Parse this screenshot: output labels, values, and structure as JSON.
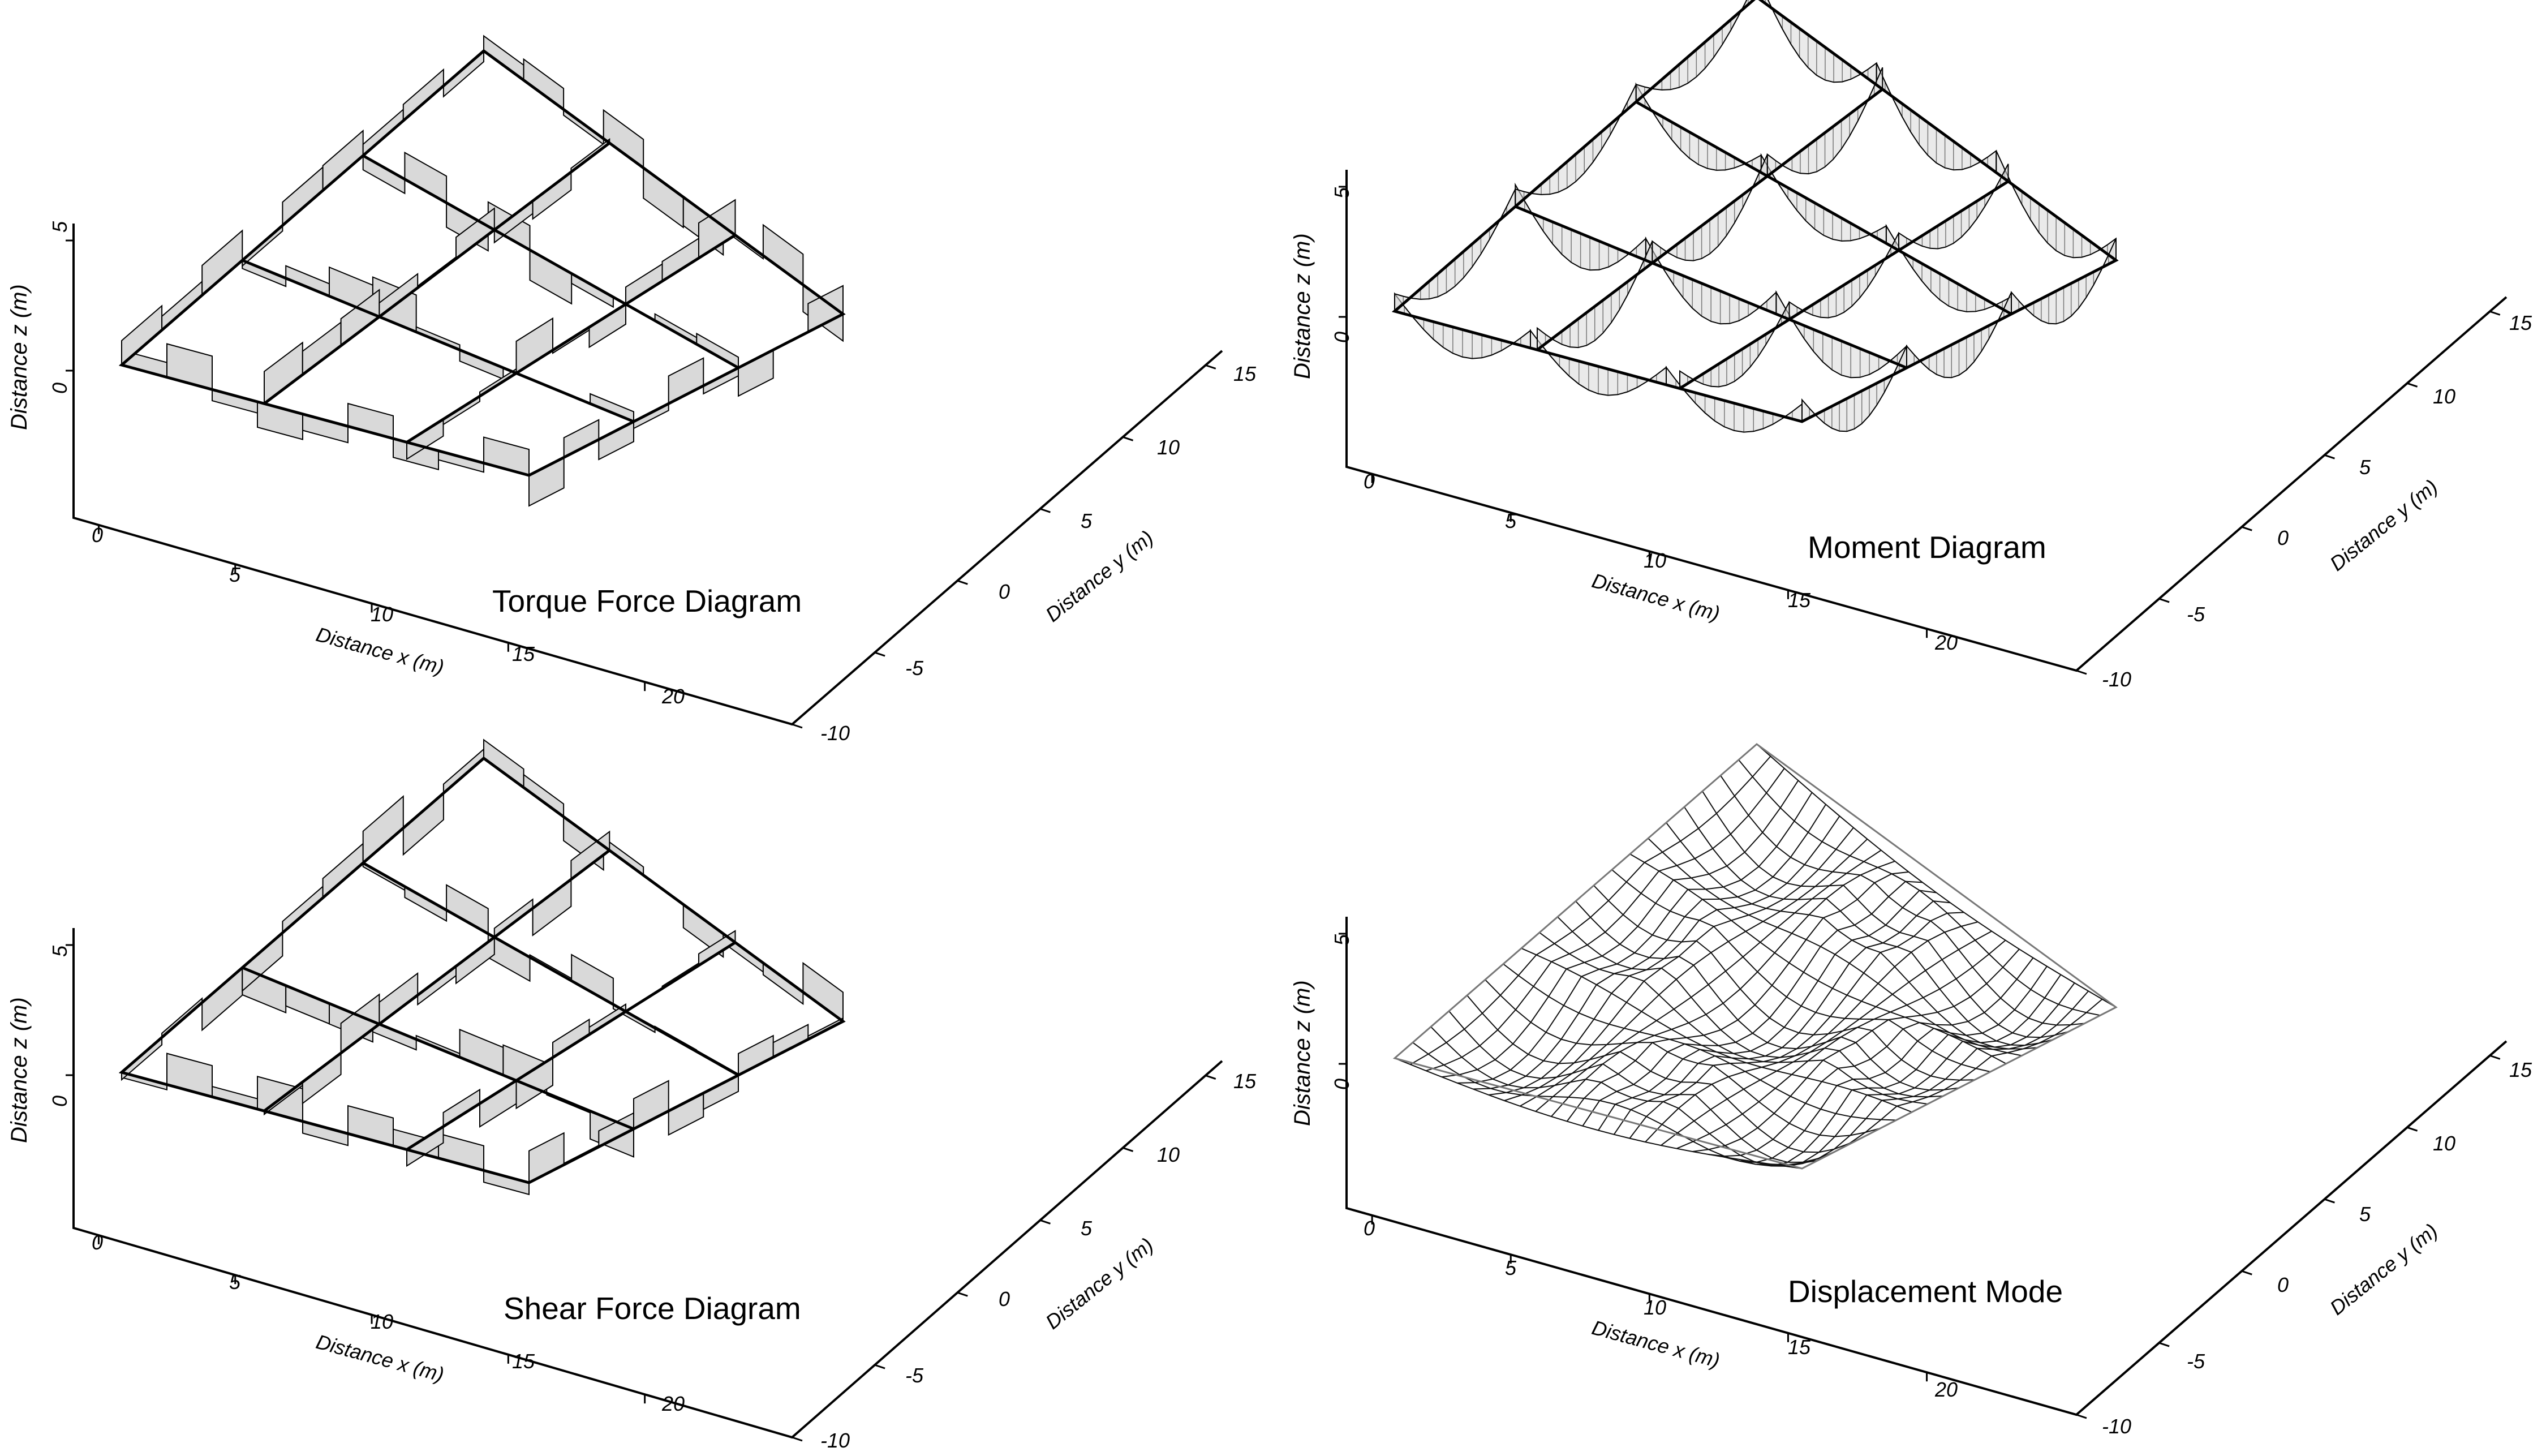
{
  "panels": [
    {
      "id": "torque",
      "title": "Torque Force Diagram",
      "kind": "bars"
    },
    {
      "id": "moment",
      "title": "Moment Diagram",
      "kind": "curves"
    },
    {
      "id": "shear",
      "title": "Shear Force Diagram",
      "kind": "bars"
    },
    {
      "id": "disp",
      "title": "Displacement Mode",
      "kind": "mesh"
    }
  ],
  "axes": {
    "x_label": "Distance x (m)",
    "y_label": "Distance y (m)",
    "z_label": "Distance z (m)",
    "x_ticks": [
      "0",
      "5",
      "10",
      "15",
      "20"
    ],
    "y_ticks": [
      "-10",
      "-5",
      "0",
      "5",
      "10",
      "15"
    ],
    "z_ticks": [
      "5",
      "0"
    ]
  },
  "colors": {
    "line": "#000000",
    "fill": "#d9d9d9",
    "mesh": "#111111"
  }
}
